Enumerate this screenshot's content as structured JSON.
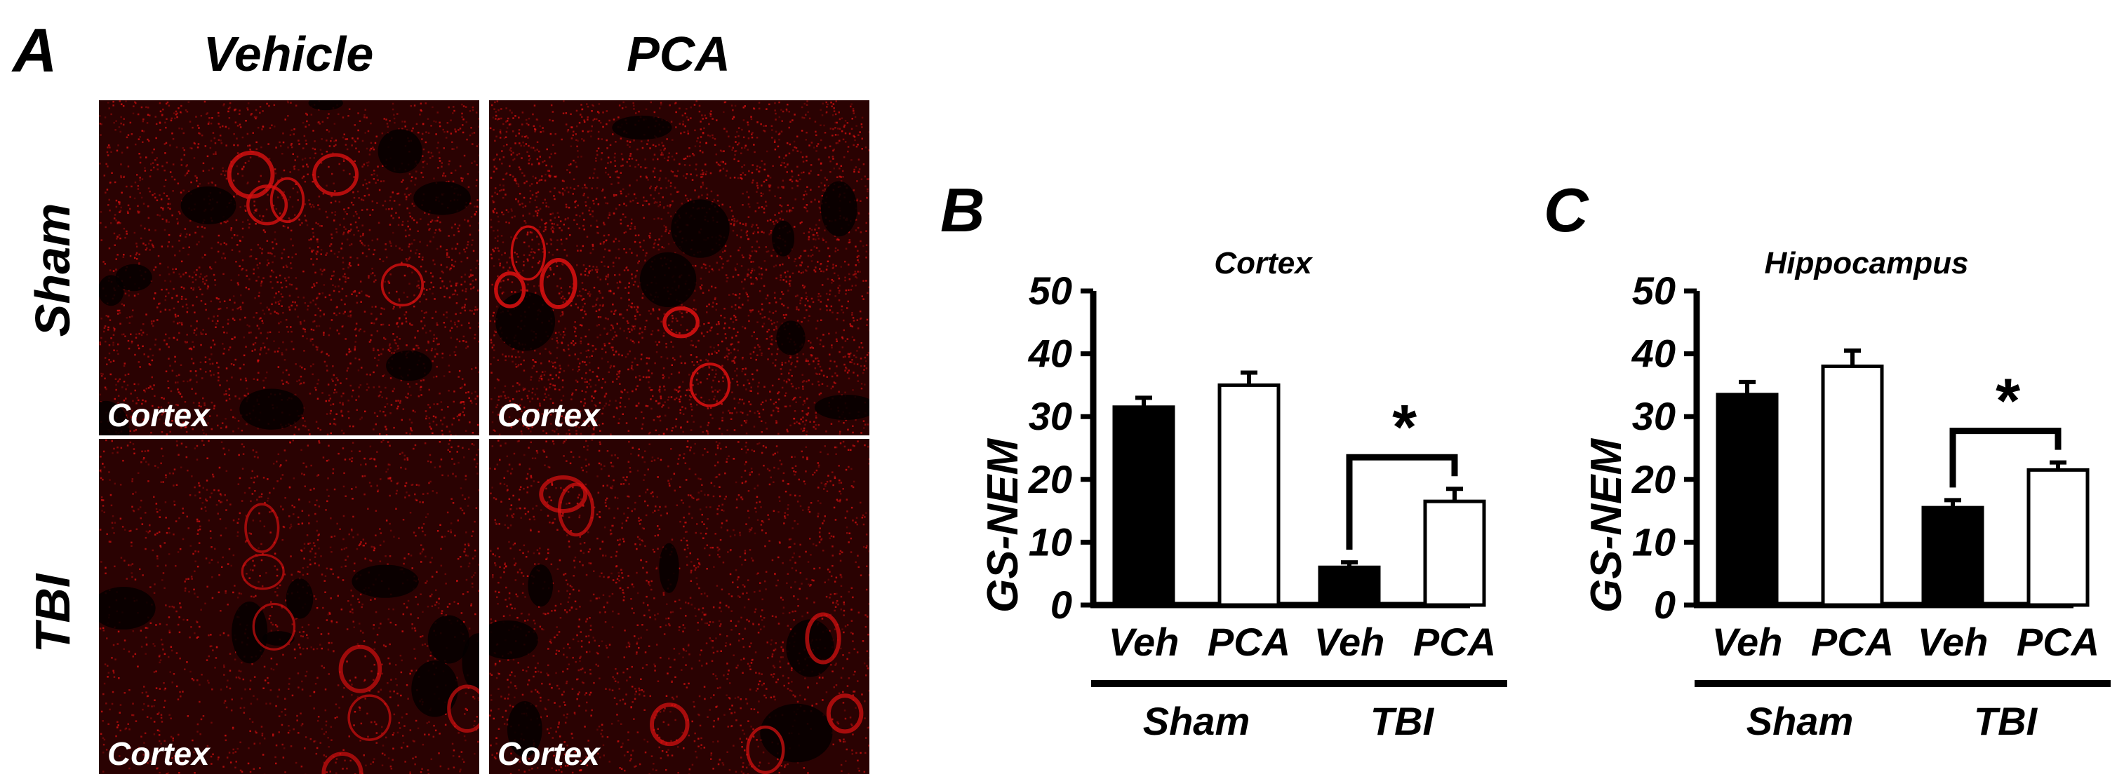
{
  "panel_a": {
    "letter": "A",
    "col_headers": [
      "Vehicle",
      "PCA"
    ],
    "row_headers": [
      "Sham",
      "TBI"
    ],
    "images": [
      {
        "row": "Sham",
        "col": "Vehicle",
        "label": "Cortex"
      },
      {
        "row": "Sham",
        "col": "PCA",
        "label": "Cortex"
      },
      {
        "row": "TBI",
        "col": "Vehicle",
        "label": "Cortex"
      },
      {
        "row": "TBI",
        "col": "PCA",
        "label": "Cortex"
      }
    ],
    "colors": {
      "stain": "#d41010",
      "background": "#1a0000"
    }
  },
  "chart_data": [
    {
      "panel": "B",
      "type": "bar",
      "title": "Cortex",
      "ylabel": "GS-NEM",
      "ylim": [
        0,
        50
      ],
      "yticks": [
        0,
        10,
        20,
        30,
        40,
        50
      ],
      "bar_labels": [
        "Veh",
        "PCA",
        "Veh",
        "PCA"
      ],
      "groups": [
        "Sham",
        "TBI"
      ],
      "values": [
        31.5,
        35,
        6,
        16.5
      ],
      "errors": [
        1.5,
        2,
        0.8,
        2
      ],
      "fills": [
        "#000000",
        "#ffffff",
        "#000000",
        "#ffffff"
      ],
      "significance": "*"
    },
    {
      "panel": "C",
      "type": "bar",
      "title": "Hippocampus",
      "ylabel": "GS-NEM",
      "ylim": [
        0,
        50
      ],
      "yticks": [
        0,
        10,
        20,
        30,
        40,
        50
      ],
      "bar_labels": [
        "Veh",
        "PCA",
        "Veh",
        "PCA"
      ],
      "groups": [
        "Sham",
        "TBI"
      ],
      "values": [
        33.5,
        38,
        15.5,
        21.5
      ],
      "errors": [
        2,
        2.5,
        1.2,
        1.2
      ],
      "fills": [
        "#000000",
        "#ffffff",
        "#000000",
        "#ffffff"
      ],
      "significance": "*"
    }
  ]
}
